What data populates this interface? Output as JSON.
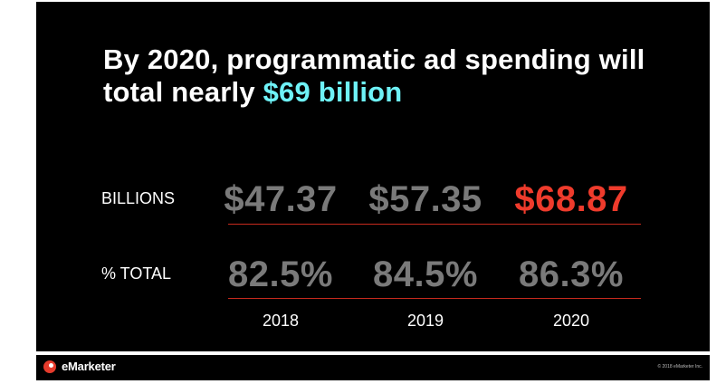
{
  "headline": {
    "text": "By 2020, programmatic ad spending will total nearly ",
    "highlight": "$69 billion"
  },
  "colors": {
    "background": "#000000",
    "accent": "#6ef2f7",
    "value_gray": "#7a7a7a",
    "highlight_red": "#ef3b2c",
    "rule_red": "#c62a1e",
    "text": "#ffffff"
  },
  "chart_data": {
    "type": "table",
    "columns": [
      "2018",
      "2019",
      "2020"
    ],
    "rows": [
      {
        "label": "BILLIONS",
        "values": [
          "$47.37",
          "$57.35",
          "$68.87"
        ],
        "numeric": [
          47.37,
          57.35,
          68.87
        ],
        "highlight_index": 2
      },
      {
        "label": "% TOTAL",
        "values": [
          "82.5%",
          "84.5%",
          "86.3%"
        ],
        "numeric": [
          82.5,
          84.5,
          86.3
        ],
        "highlight_index": null
      }
    ]
  },
  "footer": {
    "logo_text": "eMarketer",
    "logo_icon": "emarketer-logo-icon",
    "copyright": "© 2018 eMarketer Inc."
  }
}
